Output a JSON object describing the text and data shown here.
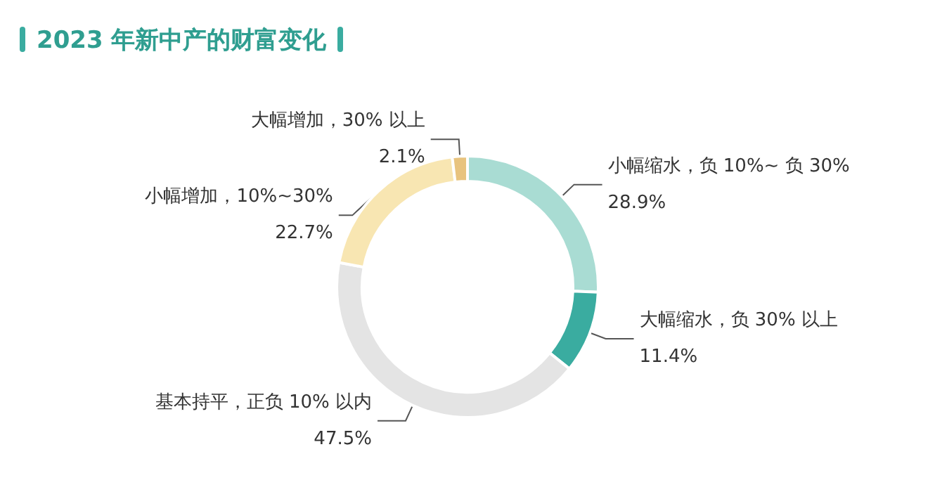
{
  "chart_data": {
    "type": "donut",
    "title": "2023 年新中产的财富变化",
    "categories": [
      "小幅缩水，负 10%~ 负 30%",
      "大幅缩水，负 30% 以上",
      "基本持平，正负 10% 以内",
      "小幅增加，10%~30%",
      "大幅增加，30% 以上"
    ],
    "values": [
      28.9,
      11.4,
      47.5,
      22.7,
      2.1
    ],
    "value_labels": [
      "28.9%",
      "11.4%",
      "47.5%",
      "22.7%",
      "2.1%"
    ],
    "colors": [
      "#a9dcd3",
      "#3aaca0",
      "#e4e4e4",
      "#f8e6b2",
      "#e8c37e"
    ],
    "legend": false
  }
}
